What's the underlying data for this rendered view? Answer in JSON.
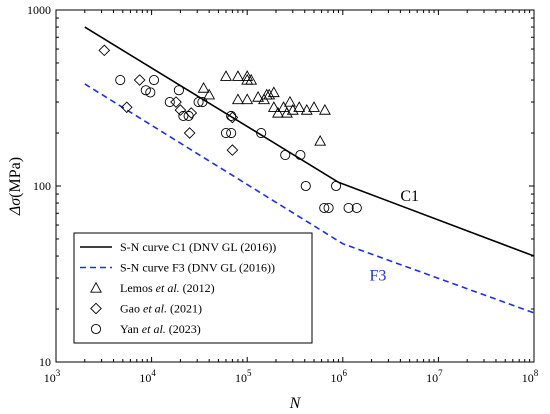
{
  "chart_data": {
    "type": "scatter",
    "title": "",
    "x_scale": "log",
    "y_scale": "log",
    "xlim": [
      1000,
      100000000
    ],
    "ylim": [
      10,
      1000
    ],
    "xlabel": "N",
    "ylabel": "Δσ",
    "ylabel_unit": "(MPa)",
    "x_ticks": [
      {
        "value": 1000,
        "base": "10",
        "exp": "3"
      },
      {
        "value": 10000,
        "base": "10",
        "exp": "4"
      },
      {
        "value": 100000,
        "base": "10",
        "exp": "5"
      },
      {
        "value": 1000000,
        "base": "10",
        "exp": "6"
      },
      {
        "value": 10000000,
        "base": "10",
        "exp": "7"
      },
      {
        "value": 100000000,
        "base": "10",
        "exp": "8"
      }
    ],
    "y_ticks": [
      {
        "value": 10,
        "label": "10"
      },
      {
        "value": 100,
        "label": "100"
      },
      {
        "value": 1000,
        "label": "1000"
      }
    ],
    "grid": false,
    "legend_position": "bottom-left",
    "legend": {
      "c1": "S-N curve C1 (DNV GL (2016))",
      "f3": "S-N curve F3 (DNV GL (2016))",
      "lemos": {
        "pre": "Lemos ",
        "italic": "et al.",
        "post": " (2012)"
      },
      "gao": {
        "pre": "Gao ",
        "italic": "et al.",
        "post": " (2021)"
      },
      "yan": {
        "pre": "Yan ",
        "italic": "et al.",
        "post": " (2023)"
      }
    },
    "annotations": {
      "c1": "C1",
      "f3": "F3"
    },
    "colors": {
      "c1": "#000000",
      "f3": "#1f2ee6",
      "markers": "#000000"
    },
    "series": [
      {
        "key": "c1",
        "kind": "line",
        "style": "solid",
        "x": [
          2000,
          900000,
          100000000
        ],
        "y": [
          800,
          105,
          40
        ]
      },
      {
        "key": "f3",
        "kind": "line",
        "style": "dashed",
        "x": [
          2000,
          1000000,
          100000000
        ],
        "y": [
          380,
          47,
          19
        ]
      },
      {
        "key": "lemos",
        "kind": "scatter",
        "marker": "triangle",
        "x": [
          35000,
          40000,
          60000,
          80000,
          100000,
          110000,
          80000,
          100000,
          100000,
          130000,
          150000,
          160000,
          170000,
          190000,
          190000,
          210000,
          240000,
          260000,
          280000,
          300000,
          350000,
          420000,
          500000,
          650000,
          580000
        ],
        "y": [
          360,
          330,
          420,
          420,
          420,
          400,
          310,
          310,
          400,
          320,
          310,
          330,
          330,
          340,
          280,
          260,
          280,
          260,
          300,
          270,
          280,
          270,
          280,
          270,
          180
        ]
      },
      {
        "key": "gao",
        "kind": "scatter",
        "marker": "diamond",
        "x": [
          3200,
          5500,
          7500,
          18000,
          20000,
          25000,
          26000,
          70000,
          70000
        ],
        "y": [
          590,
          280,
          400,
          300,
          270,
          200,
          260,
          160,
          245
        ]
      },
      {
        "key": "yan",
        "kind": "scatter",
        "marker": "circle",
        "x": [
          4700,
          8700,
          9700,
          10600,
          15500,
          19300,
          21500,
          24400,
          31000,
          34000,
          68000,
          68000,
          60000,
          140000,
          250000,
          360000,
          410000,
          640000,
          710000,
          850000,
          1150000,
          1400000
        ],
        "y": [
          400,
          350,
          340,
          400,
          300,
          350,
          250,
          250,
          300,
          300,
          250,
          200,
          200,
          200,
          150,
          150,
          100,
          75,
          75,
          100,
          75,
          75
        ]
      }
    ]
  }
}
